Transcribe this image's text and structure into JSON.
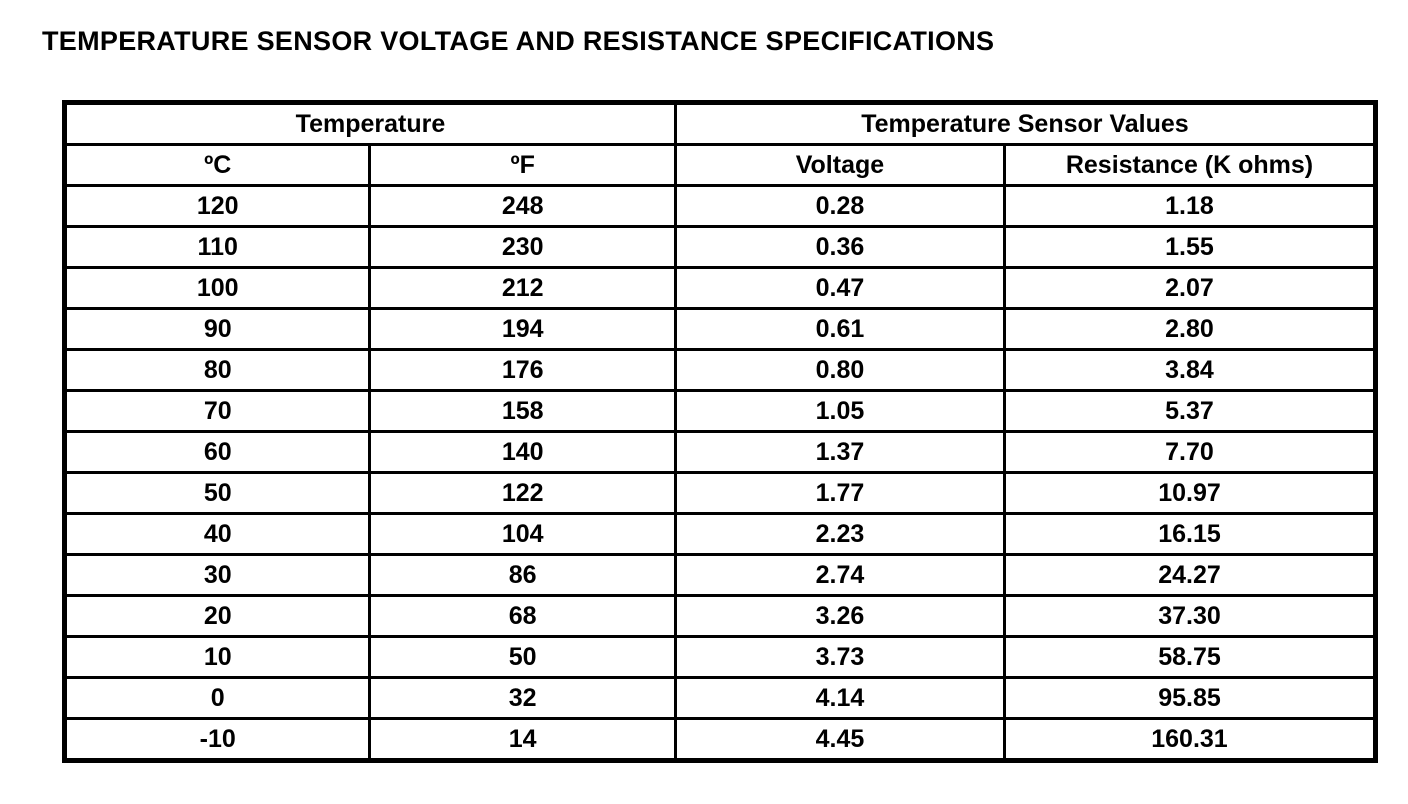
{
  "page": {
    "title": "TEMPERATURE SENSOR VOLTAGE AND RESISTANCE SPECIFICATIONS",
    "background_color": "#ffffff",
    "text_color": "#000000",
    "border_color": "#000000"
  },
  "table": {
    "group_headers": [
      {
        "label": "Temperature"
      },
      {
        "label": "Temperature Sensor Values"
      }
    ],
    "column_headers": [
      "ºC",
      "ºF",
      "Voltage",
      "Resistance (K ohms)"
    ],
    "rows": [
      [
        "120",
        "248",
        "0.28",
        "1.18"
      ],
      [
        "110",
        "230",
        "0.36",
        "1.55"
      ],
      [
        "100",
        "212",
        "0.47",
        "2.07"
      ],
      [
        "90",
        "194",
        "0.61",
        "2.80"
      ],
      [
        "80",
        "176",
        "0.80",
        "3.84"
      ],
      [
        "70",
        "158",
        "1.05",
        "5.37"
      ],
      [
        "60",
        "140",
        "1.37",
        "7.70"
      ],
      [
        "50",
        "122",
        "1.77",
        "10.97"
      ],
      [
        "40",
        "104",
        "2.23",
        "16.15"
      ],
      [
        "30",
        "86",
        "2.74",
        "24.27"
      ],
      [
        "20",
        "68",
        "3.26",
        "37.30"
      ],
      [
        "10",
        "50",
        "3.73",
        "58.75"
      ],
      [
        "0",
        "32",
        "4.14",
        "95.85"
      ],
      [
        "-10",
        "14",
        "4.45",
        "160.31"
      ]
    ]
  }
}
